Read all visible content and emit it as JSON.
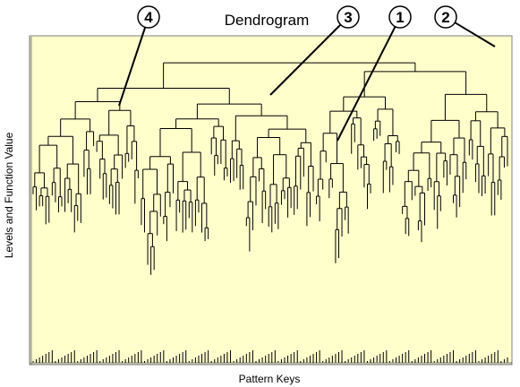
{
  "chart_data": {
    "type": "dendrogram",
    "title": "Dendrogram",
    "xlabel": "Pattern Keys",
    "ylabel": "Levels and Function Value",
    "callouts": [
      {
        "label": "4"
      },
      {
        "label": "3"
      },
      {
        "label": "1"
      },
      {
        "label": "2"
      }
    ],
    "grid": false,
    "legend": "none"
  },
  "colors": {
    "plot_background": "#ffffcc",
    "line": "#000000",
    "frame": "#808080"
  }
}
